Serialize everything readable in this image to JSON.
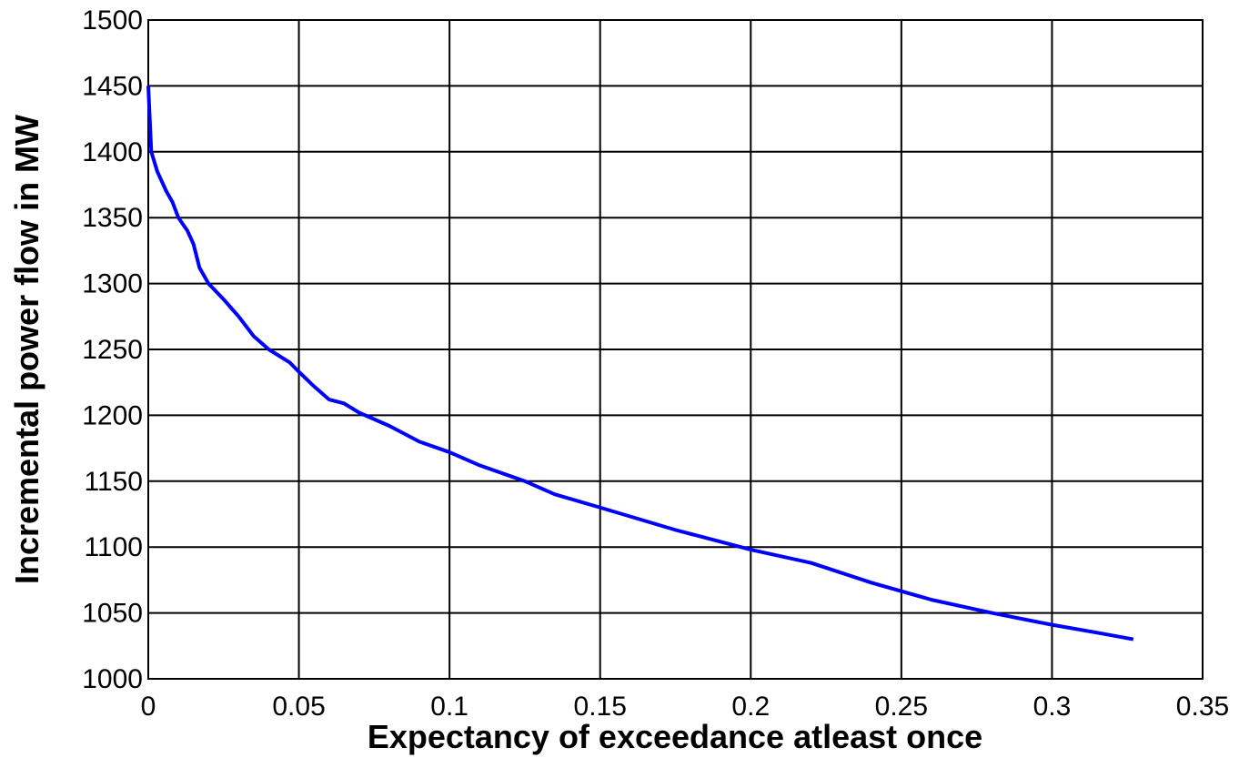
{
  "chart_data": {
    "type": "line",
    "xlabel": "Expectancy of exceedance atleast once",
    "ylabel": "Incremental power flow in MW",
    "x": [
      0,
      0.001,
      0.003,
      0.006,
      0.008,
      0.01,
      0.013,
      0.015,
      0.017,
      0.02,
      0.025,
      0.03,
      0.035,
      0.04,
      0.047,
      0.05,
      0.055,
      0.06,
      0.065,
      0.07,
      0.08,
      0.09,
      0.1,
      0.11,
      0.125,
      0.135,
      0.15,
      0.175,
      0.2,
      0.22,
      0.24,
      0.26,
      0.28,
      0.3,
      0.315,
      0.327
    ],
    "series": [
      {
        "color": "#0000ff",
        "values": [
          1450,
          1400,
          1385,
          1370,
          1362,
          1350,
          1340,
          1330,
          1312,
          1300,
          1288,
          1275,
          1260,
          1250,
          1240,
          1233,
          1222,
          1212,
          1209,
          1202,
          1192,
          1180,
          1172,
          1162,
          1150,
          1140,
          1130,
          1113,
          1098,
          1088,
          1073,
          1060,
          1050,
          1041,
          1035,
          1030
        ]
      }
    ],
    "xlim": [
      0,
      0.35
    ],
    "xticks": [
      0,
      0.05,
      0.1,
      0.15,
      0.2,
      0.25,
      0.3,
      0.35
    ],
    "ylim": [
      1000,
      1500
    ],
    "yticks": [
      1000,
      1050,
      1100,
      1150,
      1200,
      1250,
      1300,
      1350,
      1400,
      1450,
      1500
    ],
    "grid": true
  }
}
